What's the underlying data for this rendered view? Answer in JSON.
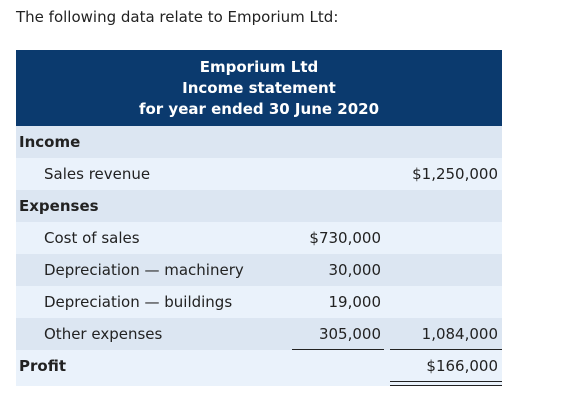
{
  "intro": "The following data relate to Emporium Ltd:",
  "table": {
    "header": [
      "Emporium Ltd",
      "Income statement",
      "for year ended 30 June 2020"
    ],
    "rows": [
      {
        "label": "Income",
        "section": true
      },
      {
        "label": "Sales revenue",
        "col3": "$1,250,000"
      },
      {
        "label": "Expenses",
        "section": true
      },
      {
        "label": "Cost of sales",
        "col2": "$730,000"
      },
      {
        "label": "Depreciation — machinery",
        "col2": "30,000"
      },
      {
        "label": "Depreciation — buildings",
        "col2": "19,000"
      },
      {
        "label": "Other expenses",
        "col2": "305,000",
        "col3": "1,084,000"
      },
      {
        "label": "Profit",
        "section": true,
        "col3": "$166,000"
      }
    ]
  }
}
